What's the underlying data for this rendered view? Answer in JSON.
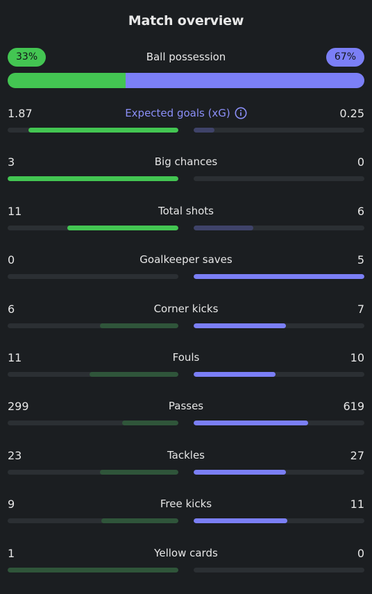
{
  "title": "Match overview",
  "possession": {
    "label": "Ball possession",
    "home_text": "33%",
    "away_text": "67%",
    "home_fraction": 0.33,
    "away_fraction": 0.67
  },
  "colors": {
    "home": "#43c552",
    "home_dim": "#2f553a",
    "away": "#7b7ff6",
    "away_dim": "#3f4369",
    "track": "#2b2f33",
    "accent_label": "#8b8ff8",
    "background": "#1b1e21"
  },
  "stats": [
    {
      "label": "Expected goals (xG)",
      "home": "1.87",
      "away": "0.25",
      "home_fraction": 0.88,
      "away_fraction": 0.12,
      "home_style": "green",
      "away_style": "dimblue",
      "accent": true,
      "icon": "info-icon"
    },
    {
      "label": "Big chances",
      "home": "3",
      "away": "0",
      "home_fraction": 1.0,
      "away_fraction": 0.0,
      "home_style": "green",
      "away_style": "dimblue"
    },
    {
      "label": "Total shots",
      "home": "11",
      "away": "6",
      "home_fraction": 0.65,
      "away_fraction": 0.35,
      "home_style": "green",
      "away_style": "dimblue"
    },
    {
      "label": "Goalkeeper saves",
      "home": "0",
      "away": "5",
      "home_fraction": 0.0,
      "away_fraction": 1.0,
      "home_style": "dimgreen",
      "away_style": "blue"
    },
    {
      "label": "Corner kicks",
      "home": "6",
      "away": "7",
      "home_fraction": 0.46,
      "away_fraction": 0.54,
      "home_style": "dimgreen",
      "away_style": "blue"
    },
    {
      "label": "Fouls",
      "home": "11",
      "away": "10",
      "home_fraction": 0.52,
      "away_fraction": 0.48,
      "home_style": "dimgreen",
      "away_style": "blue"
    },
    {
      "label": "Passes",
      "home": "299",
      "away": "619",
      "home_fraction": 0.33,
      "away_fraction": 0.67,
      "home_style": "dimgreen",
      "away_style": "blue"
    },
    {
      "label": "Tackles",
      "home": "23",
      "away": "27",
      "home_fraction": 0.46,
      "away_fraction": 0.54,
      "home_style": "dimgreen",
      "away_style": "blue"
    },
    {
      "label": "Free kicks",
      "home": "9",
      "away": "11",
      "home_fraction": 0.45,
      "away_fraction": 0.55,
      "home_style": "dimgreen",
      "away_style": "blue"
    },
    {
      "label": "Yellow cards",
      "home": "1",
      "away": "0",
      "home_fraction": 1.0,
      "away_fraction": 0.0,
      "home_style": "dimgreen",
      "away_style": "dimblue"
    }
  ]
}
